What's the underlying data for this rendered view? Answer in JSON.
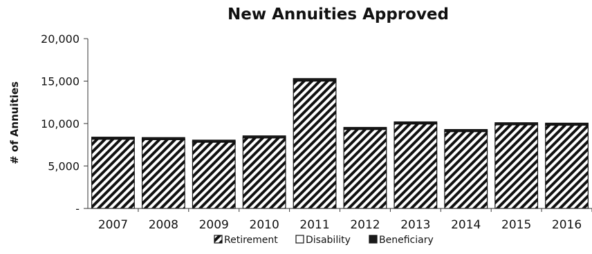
{
  "chart_data": {
    "type": "bar",
    "stacked": true,
    "title": "New Annuities Approved",
    "ylabel": "# of Annuities",
    "xlabel": "",
    "categories": [
      "2007",
      "2008",
      "2009",
      "2010",
      "2011",
      "2012",
      "2013",
      "2014",
      "2015",
      "2016"
    ],
    "series": [
      {
        "name": "Retirement",
        "fill": "hatch",
        "values": [
          8150,
          8100,
          7800,
          8300,
          15000,
          9300,
          9950,
          9050,
          9850,
          9800
        ]
      },
      {
        "name": "Disability",
        "fill": "#ffffff",
        "values": [
          50,
          50,
          50,
          50,
          50,
          50,
          50,
          50,
          50,
          50
        ]
      },
      {
        "name": "Beneficiary",
        "fill": "#1a1a1a",
        "values": [
          200,
          200,
          200,
          200,
          250,
          200,
          200,
          200,
          200,
          200
        ]
      }
    ],
    "ylim": [
      0,
      20000
    ],
    "yticks": [
      0,
      5000,
      10000,
      15000,
      20000
    ],
    "ytick_labels": [
      "-",
      "5,000",
      "10,000",
      "15,000",
      "20,000"
    ],
    "grid": false,
    "legend_position": "bottom"
  }
}
